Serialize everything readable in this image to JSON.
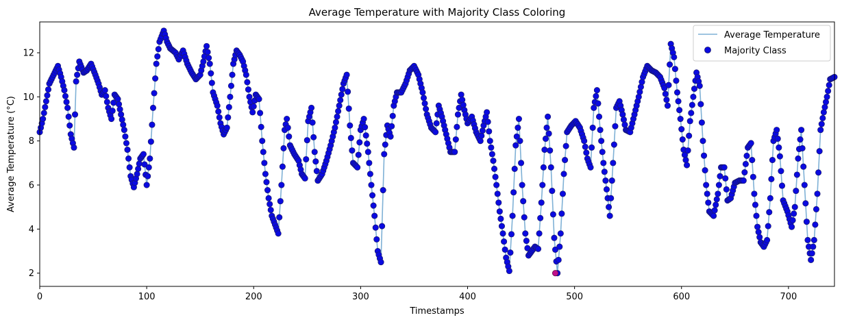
{
  "chart_data": {
    "type": "line",
    "title": "Average Temperature with Majority Class Coloring",
    "xlabel": "Timestamps",
    "ylabel": "Average Temperature (°C)",
    "xlim": [
      0,
      743
    ],
    "ylim": [
      1.4,
      13.4
    ],
    "xticks": [
      0,
      100,
      200,
      300,
      400,
      500,
      600,
      700
    ],
    "yticks": [
      2,
      4,
      6,
      8,
      10,
      12
    ],
    "grid": false,
    "legend_position": "top-right",
    "legend": [
      {
        "label": "Average Temperature",
        "kind": "line"
      },
      {
        "label": "Majority Class",
        "kind": "marker"
      }
    ],
    "colors": {
      "line": "#7fb1d6",
      "marker": "#0a0ae0",
      "marker_edge": "#1a1a6a",
      "highlight": "#c0108a"
    },
    "anchors": [
      [
        0,
        8.4
      ],
      [
        3,
        9.0
      ],
      [
        6,
        9.8
      ],
      [
        9,
        10.6
      ],
      [
        13,
        11.0
      ],
      [
        17,
        11.4
      ],
      [
        20,
        10.9
      ],
      [
        23,
        10.3
      ],
      [
        26,
        9.5
      ],
      [
        29,
        8.3
      ],
      [
        32,
        7.7
      ],
      [
        34,
        10.7
      ],
      [
        37,
        11.6
      ],
      [
        41,
        11.1
      ],
      [
        44,
        11.2
      ],
      [
        48,
        11.5
      ],
      [
        52,
        11.0
      ],
      [
        55,
        10.6
      ],
      [
        58,
        10.1
      ],
      [
        61,
        10.3
      ],
      [
        64,
        9.5
      ],
      [
        67,
        9.0
      ],
      [
        70,
        10.1
      ],
      [
        73,
        9.9
      ],
      [
        76,
        9.2
      ],
      [
        79,
        8.5
      ],
      [
        82,
        7.6
      ],
      [
        85,
        6.4
      ],
      [
        88,
        5.9
      ],
      [
        91,
        6.5
      ],
      [
        94,
        7.2
      ],
      [
        97,
        7.4
      ],
      [
        100,
        6.0
      ],
      [
        103,
        7.2
      ],
      [
        106,
        9.5
      ],
      [
        109,
        11.5
      ],
      [
        112,
        12.5
      ],
      [
        116,
        13.0
      ],
      [
        119,
        12.5
      ],
      [
        122,
        12.2
      ],
      [
        127,
        12.0
      ],
      [
        130,
        11.7
      ],
      [
        134,
        12.1
      ],
      [
        138,
        11.5
      ],
      [
        142,
        11.1
      ],
      [
        146,
        10.8
      ],
      [
        150,
        11.0
      ],
      [
        153,
        11.6
      ],
      [
        156,
        12.3
      ],
      [
        159,
        11.5
      ],
      [
        162,
        10.2
      ],
      [
        166,
        9.6
      ],
      [
        169,
        8.8
      ],
      [
        172,
        8.3
      ],
      [
        175,
        8.6
      ],
      [
        178,
        10.0
      ],
      [
        181,
        11.5
      ],
      [
        184,
        12.1
      ],
      [
        187,
        11.9
      ],
      [
        190,
        11.6
      ],
      [
        193,
        11.0
      ],
      [
        196,
        10.0
      ],
      [
        199,
        9.3
      ],
      [
        202,
        10.1
      ],
      [
        205,
        9.9
      ],
      [
        208,
        8.0
      ],
      [
        211,
        6.5
      ],
      [
        214,
        5.4
      ],
      [
        217,
        4.6
      ],
      [
        220,
        4.2
      ],
      [
        223,
        3.8
      ],
      [
        226,
        6.0
      ],
      [
        229,
        8.5
      ],
      [
        231,
        9.0
      ],
      [
        234,
        7.8
      ],
      [
        238,
        7.4
      ],
      [
        242,
        7.1
      ],
      [
        245,
        6.5
      ],
      [
        248,
        6.3
      ],
      [
        251,
        8.9
      ],
      [
        254,
        9.5
      ],
      [
        257,
        7.5
      ],
      [
        260,
        6.2
      ],
      [
        264,
        6.5
      ],
      [
        268,
        7.1
      ],
      [
        272,
        7.8
      ],
      [
        276,
        8.6
      ],
      [
        280,
        9.6
      ],
      [
        284,
        10.6
      ],
      [
        287,
        11.0
      ],
      [
        290,
        8.7
      ],
      [
        293,
        7.0
      ],
      [
        297,
        6.8
      ],
      [
        300,
        8.5
      ],
      [
        303,
        9.0
      ],
      [
        307,
        7.5
      ],
      [
        310,
        6.0
      ],
      [
        313,
        4.6
      ],
      [
        316,
        3.0
      ],
      [
        319,
        2.5
      ],
      [
        322,
        7.4
      ],
      [
        325,
        8.7
      ],
      [
        328,
        8.2
      ],
      [
        331,
        9.6
      ],
      [
        334,
        10.2
      ],
      [
        338,
        10.2
      ],
      [
        342,
        10.6
      ],
      [
        346,
        11.2
      ],
      [
        350,
        11.4
      ],
      [
        354,
        11.0
      ],
      [
        358,
        10.2
      ],
      [
        362,
        9.2
      ],
      [
        366,
        8.6
      ],
      [
        370,
        8.4
      ],
      [
        373,
        9.6
      ],
      [
        376,
        9.1
      ],
      [
        380,
        8.3
      ],
      [
        384,
        7.5
      ],
      [
        388,
        7.5
      ],
      [
        391,
        9.2
      ],
      [
        394,
        10.1
      ],
      [
        397,
        9.4
      ],
      [
        400,
        8.8
      ],
      [
        404,
        9.1
      ],
      [
        408,
        8.4
      ],
      [
        412,
        8.0
      ],
      [
        415,
        8.7
      ],
      [
        418,
        9.3
      ],
      [
        421,
        8.0
      ],
      [
        424,
        7.1
      ],
      [
        427,
        6.0
      ],
      [
        430,
        4.8
      ],
      [
        433,
        3.8
      ],
      [
        436,
        2.7
      ],
      [
        439,
        2.1
      ],
      [
        442,
        4.6
      ],
      [
        445,
        7.8
      ],
      [
        448,
        9.0
      ],
      [
        451,
        6.0
      ],
      [
        454,
        3.8
      ],
      [
        457,
        2.8
      ],
      [
        460,
        3.0
      ],
      [
        463,
        3.2
      ],
      [
        466,
        3.1
      ],
      [
        469,
        5.2
      ],
      [
        472,
        7.6
      ],
      [
        475,
        9.1
      ],
      [
        478,
        6.8
      ],
      [
        481,
        3.6
      ],
      [
        484,
        2.0
      ],
      [
        487,
        3.8
      ],
      [
        490,
        6.5
      ],
      [
        493,
        8.4
      ],
      [
        497,
        8.7
      ],
      [
        501,
        8.9
      ],
      [
        505,
        8.6
      ],
      [
        509,
        8.0
      ],
      [
        512,
        7.2
      ],
      [
        515,
        6.8
      ],
      [
        518,
        9.5
      ],
      [
        521,
        10.3
      ],
      [
        524,
        8.5
      ],
      [
        527,
        7.0
      ],
      [
        530,
        5.8
      ],
      [
        533,
        4.6
      ],
      [
        536,
        7.0
      ],
      [
        539,
        9.5
      ],
      [
        542,
        9.8
      ],
      [
        545,
        9.2
      ],
      [
        548,
        8.5
      ],
      [
        552,
        8.4
      ],
      [
        556,
        9.2
      ],
      [
        560,
        10.0
      ],
      [
        564,
        10.9
      ],
      [
        568,
        11.4
      ],
      [
        572,
        11.2
      ],
      [
        576,
        11.1
      ],
      [
        580,
        10.9
      ],
      [
        584,
        10.4
      ],
      [
        587,
        9.6
      ],
      [
        590,
        12.4
      ],
      [
        593,
        11.8
      ],
      [
        596,
        10.2
      ],
      [
        599,
        9.0
      ],
      [
        602,
        7.6
      ],
      [
        605,
        6.9
      ],
      [
        608,
        8.9
      ],
      [
        611,
        10.0
      ],
      [
        614,
        11.1
      ],
      [
        617,
        10.5
      ],
      [
        620,
        8.0
      ],
      [
        623,
        6.0
      ],
      [
        626,
        4.8
      ],
      [
        630,
        4.6
      ],
      [
        634,
        5.6
      ],
      [
        637,
        6.8
      ],
      [
        640,
        6.8
      ],
      [
        643,
        5.3
      ],
      [
        646,
        5.4
      ],
      [
        650,
        6.1
      ],
      [
        654,
        6.2
      ],
      [
        658,
        6.2
      ],
      [
        662,
        7.7
      ],
      [
        665,
        7.9
      ],
      [
        668,
        5.6
      ],
      [
        671,
        4.1
      ],
      [
        674,
        3.4
      ],
      [
        677,
        3.2
      ],
      [
        680,
        3.5
      ],
      [
        683,
        5.4
      ],
      [
        686,
        8.0
      ],
      [
        689,
        8.5
      ],
      [
        692,
        7.3
      ],
      [
        695,
        5.3
      ],
      [
        699,
        4.8
      ],
      [
        703,
        4.1
      ],
      [
        706,
        5.0
      ],
      [
        709,
        7.2
      ],
      [
        712,
        8.5
      ],
      [
        715,
        6.0
      ],
      [
        718,
        3.5
      ],
      [
        721,
        2.6
      ],
      [
        724,
        3.5
      ],
      [
        727,
        5.6
      ],
      [
        730,
        8.5
      ],
      [
        733,
        9.3
      ],
      [
        736,
        10.0
      ],
      [
        739,
        10.8
      ],
      [
        743,
        10.9
      ]
    ],
    "highlight_points": [
      [
        482,
        2.0
      ]
    ]
  }
}
